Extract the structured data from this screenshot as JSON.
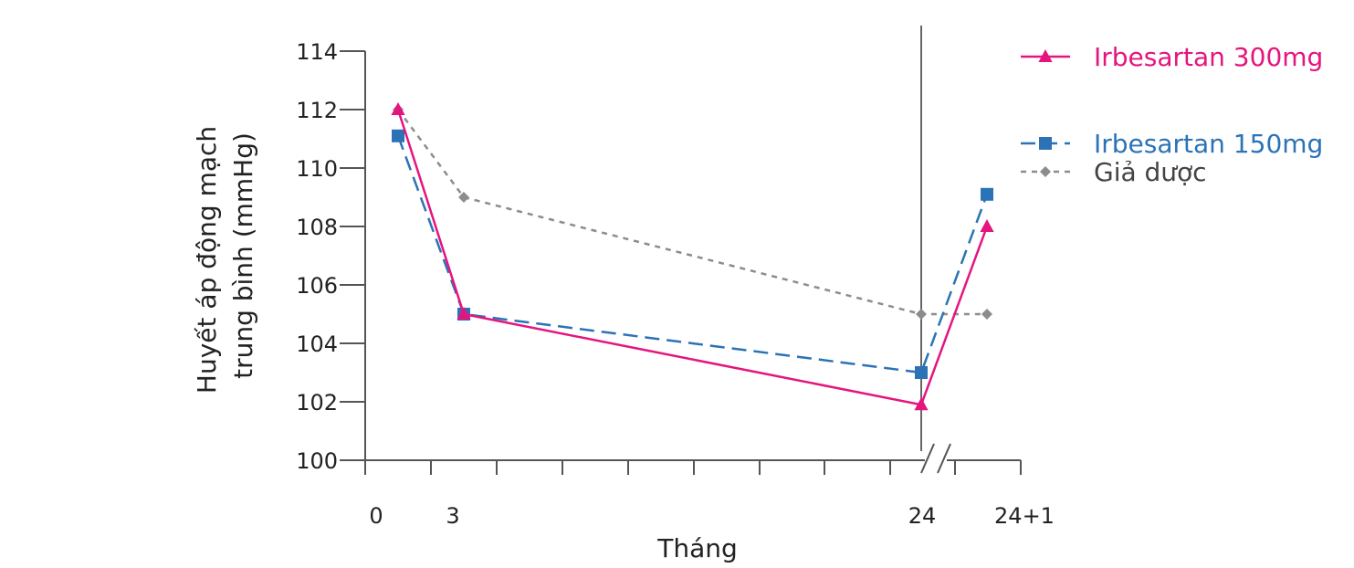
{
  "chart_data": {
    "type": "line",
    "ylabel_lines": [
      "Huyết áp động mạch",
      "trung bình (mmHg)"
    ],
    "xlabel": "Tháng",
    "ylim": [
      100,
      114
    ],
    "yticks": [
      100,
      102,
      104,
      106,
      108,
      110,
      112,
      114
    ],
    "x_categories": [
      "0",
      "3",
      "24",
      "24+1"
    ],
    "x_tick_labels": [
      "0",
      "3",
      "24",
      "24+1"
    ],
    "axis_break": "between 24 and 24+1",
    "grid": false,
    "legend_position": "top-right",
    "series": [
      {
        "name": "Irbesartan 300mg",
        "color": "#e5157f",
        "marker": "triangle",
        "line_style": "solid",
        "values": [
          112,
          105,
          101.9,
          108
        ]
      },
      {
        "name": "Irbesartan 150mg",
        "color": "#2b73b6",
        "marker": "square",
        "line_style": "dashed",
        "values": [
          111.1,
          105,
          103,
          109.1
        ]
      },
      {
        "name": "Giả dược",
        "color": "#8c8c8c",
        "marker": "diamond",
        "line_style": "dotted",
        "values": [
          112,
          109,
          105,
          105
        ]
      }
    ]
  }
}
